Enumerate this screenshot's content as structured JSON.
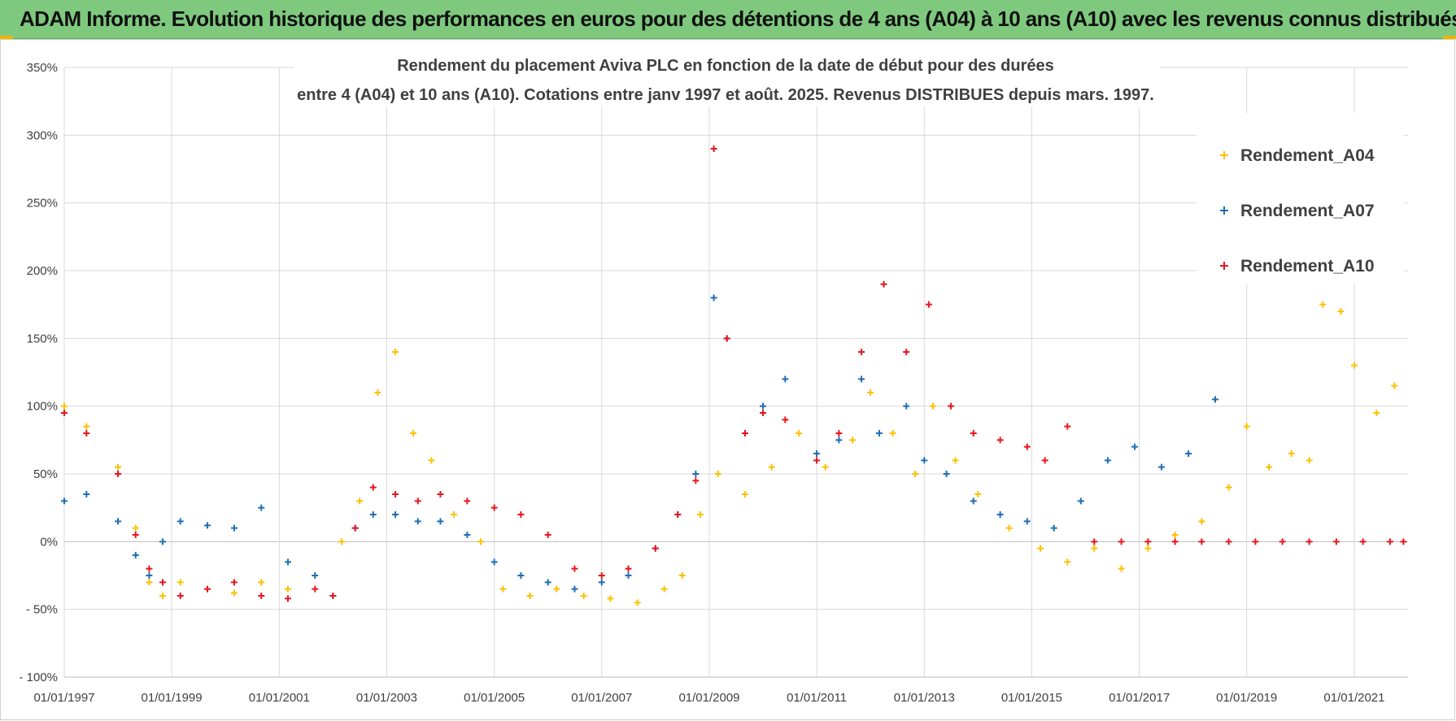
{
  "header": {
    "banner": "ADAM Informe. Evolution historique des performances en euros pour des détentions de 4 ans (A04) à 10 ans (A10) avec les revenus connus distribués"
  },
  "chart_data": {
    "type": "scatter",
    "title_lines": [
      "Rendement du placement Aviva PLC en fonction de la date de début pour des durées",
      "entre 4 (A04) et 10 ans (A10).  Cotations entre janv 1997 et août. 2025. Revenus DISTRIBUES depuis mars. 1997."
    ],
    "xlabel": "",
    "ylabel": "",
    "x_range": [
      "1997-01-01",
      "2022-01-01"
    ],
    "ylim": [
      -100,
      350
    ],
    "y_ticks": [
      350,
      300,
      250,
      200,
      150,
      100,
      50,
      0,
      -50,
      -100
    ],
    "y_tick_labels": [
      "350%",
      "300%",
      "250%",
      "200%",
      "150%",
      "100%",
      "50%",
      "0%",
      "- 50%",
      "- 100%"
    ],
    "x_ticks": [
      "1997-01-01",
      "1999-01-01",
      "2001-01-01",
      "2003-01-01",
      "2005-01-01",
      "2007-01-01",
      "2009-01-01",
      "2011-01-01",
      "2013-01-01",
      "2015-01-01",
      "2017-01-01",
      "2019-01-01",
      "2021-01-01"
    ],
    "x_tick_labels": [
      "01/01/1997",
      "01/01/1999",
      "01/01/2001",
      "01/01/2003",
      "01/01/2005",
      "01/01/2007",
      "01/01/2009",
      "01/01/2011",
      "01/01/2013",
      "01/01/2015",
      "01/01/2017",
      "01/01/2019",
      "01/01/2021"
    ],
    "grid": true,
    "legend_position": "top-right",
    "marker": "+",
    "series": [
      {
        "name": "Rendement_A04",
        "color": "#ffc000",
        "x": [
          "1997-01-01",
          "1997-06-01",
          "1998-01-01",
          "1998-05-01",
          "1998-08-01",
          "1998-11-01",
          "1999-03-01",
          "1999-09-01",
          "2000-03-01",
          "2000-09-01",
          "2001-03-01",
          "2001-09-01",
          "2002-03-01",
          "2002-07-01",
          "2002-11-01",
          "2003-03-01",
          "2003-07-01",
          "2003-11-01",
          "2004-04-01",
          "2004-10-01",
          "2005-03-01",
          "2005-09-01",
          "2006-03-01",
          "2006-09-01",
          "2007-03-01",
          "2007-09-01",
          "2008-03-01",
          "2008-07-01",
          "2008-11-01",
          "2009-03-01",
          "2009-09-01",
          "2010-03-01",
          "2010-09-01",
          "2011-03-01",
          "2011-09-01",
          "2012-01-01",
          "2012-06-01",
          "2012-11-01",
          "2013-03-01",
          "2013-08-01",
          "2014-01-01",
          "2014-08-01",
          "2015-03-01",
          "2015-09-01",
          "2016-03-01",
          "2016-09-01",
          "2017-03-01",
          "2017-09-01",
          "2018-03-01",
          "2018-09-01",
          "2019-01-01",
          "2019-06-01",
          "2019-11-01",
          "2020-03-01",
          "2020-06-01",
          "2020-10-01",
          "2021-01-01",
          "2021-06-01",
          "2021-10-01"
        ],
        "y": [
          100,
          85,
          55,
          10,
          -30,
          -40,
          -30,
          -35,
          -38,
          -30,
          -35,
          -25,
          0,
          30,
          110,
          140,
          80,
          60,
          20,
          0,
          -35,
          -40,
          -35,
          -40,
          -42,
          -45,
          -35,
          -25,
          20,
          50,
          35,
          55,
          80,
          55,
          75,
          110,
          80,
          50,
          100,
          60,
          35,
          10,
          -5,
          -15,
          -5,
          -20,
          -5,
          5,
          15,
          40,
          85,
          55,
          65,
          60,
          175,
          170,
          130,
          95,
          115
        ]
      },
      {
        "name": "Rendement_A07",
        "color": "#1f6fb5",
        "x": [
          "1997-01-01",
          "1997-06-01",
          "1998-01-01",
          "1998-05-01",
          "1998-08-01",
          "1998-11-01",
          "1999-03-01",
          "1999-09-01",
          "2000-03-01",
          "2000-09-01",
          "2001-03-01",
          "2001-09-01",
          "2002-01-01",
          "2002-06-01",
          "2002-10-01",
          "2003-03-01",
          "2003-08-01",
          "2004-01-01",
          "2004-07-01",
          "2005-01-01",
          "2005-07-01",
          "2006-01-01",
          "2006-07-01",
          "2007-01-01",
          "2007-07-01",
          "2008-01-01",
          "2008-06-01",
          "2008-10-01",
          "2009-02-01",
          "2009-05-01",
          "2009-09-01",
          "2010-01-01",
          "2010-06-01",
          "2011-01-01",
          "2011-06-01",
          "2011-11-01",
          "2012-03-01",
          "2012-09-01",
          "2013-01-01",
          "2013-06-01",
          "2013-12-01",
          "2014-06-01",
          "2014-12-01",
          "2015-06-01",
          "2015-12-01",
          "2016-06-01",
          "2016-12-01",
          "2017-06-01",
          "2017-12-01",
          "2018-06-01"
        ],
        "y": [
          30,
          35,
          15,
          -10,
          -25,
          0,
          15,
          12,
          10,
          25,
          -15,
          -25,
          -40,
          10,
          20,
          20,
          15,
          15,
          5,
          -15,
          -25,
          -30,
          -35,
          -30,
          -25,
          -5,
          20,
          50,
          180,
          150,
          80,
          100,
          120,
          65,
          75,
          120,
          80,
          100,
          60,
          50,
          30,
          20,
          15,
          10,
          30,
          60,
          70,
          55,
          65,
          105
        ]
      },
      {
        "name": "Rendement_A10",
        "color": "#e8161e",
        "x": [
          "1997-01-01",
          "1997-06-01",
          "1998-01-01",
          "1998-05-01",
          "1998-08-01",
          "1998-11-01",
          "1999-03-01",
          "1999-09-01",
          "2000-03-01",
          "2000-09-01",
          "2001-03-01",
          "2001-09-01",
          "2002-01-01",
          "2002-06-01",
          "2002-10-01",
          "2003-03-01",
          "2003-08-01",
          "2004-01-01",
          "2004-07-01",
          "2005-01-01",
          "2005-07-01",
          "2006-01-01",
          "2006-07-01",
          "2007-01-01",
          "2007-07-01",
          "2008-01-01",
          "2008-06-01",
          "2008-10-01",
          "2009-02-01",
          "2009-05-01",
          "2009-09-01",
          "2010-01-01",
          "2010-06-01",
          "2011-01-01",
          "2011-06-01",
          "2011-11-01",
          "2012-04-01",
          "2012-09-01",
          "2013-02-01",
          "2013-07-01",
          "2013-12-01",
          "2014-06-01",
          "2014-12-01",
          "2015-04-01",
          "2015-09-01",
          "2016-03-01",
          "2016-09-01",
          "2017-03-01",
          "2017-09-01",
          "2018-03-01",
          "2018-09-01",
          "2019-03-01",
          "2019-09-01",
          "2020-03-01",
          "2020-09-01",
          "2021-03-01",
          "2021-09-01",
          "2021-12-01"
        ],
        "y": [
          95,
          80,
          50,
          5,
          -20,
          -30,
          -40,
          -35,
          -30,
          -40,
          -42,
          -35,
          -40,
          10,
          40,
          35,
          30,
          35,
          30,
          25,
          20,
          5,
          -20,
          -25,
          -20,
          -5,
          20,
          45,
          290,
          150,
          80,
          95,
          90,
          60,
          80,
          140,
          190,
          140,
          175,
          100,
          80,
          75,
          70,
          60,
          85,
          0,
          0,
          0,
          0,
          0,
          0,
          0,
          0,
          0,
          0,
          0,
          0,
          0
        ]
      }
    ]
  }
}
